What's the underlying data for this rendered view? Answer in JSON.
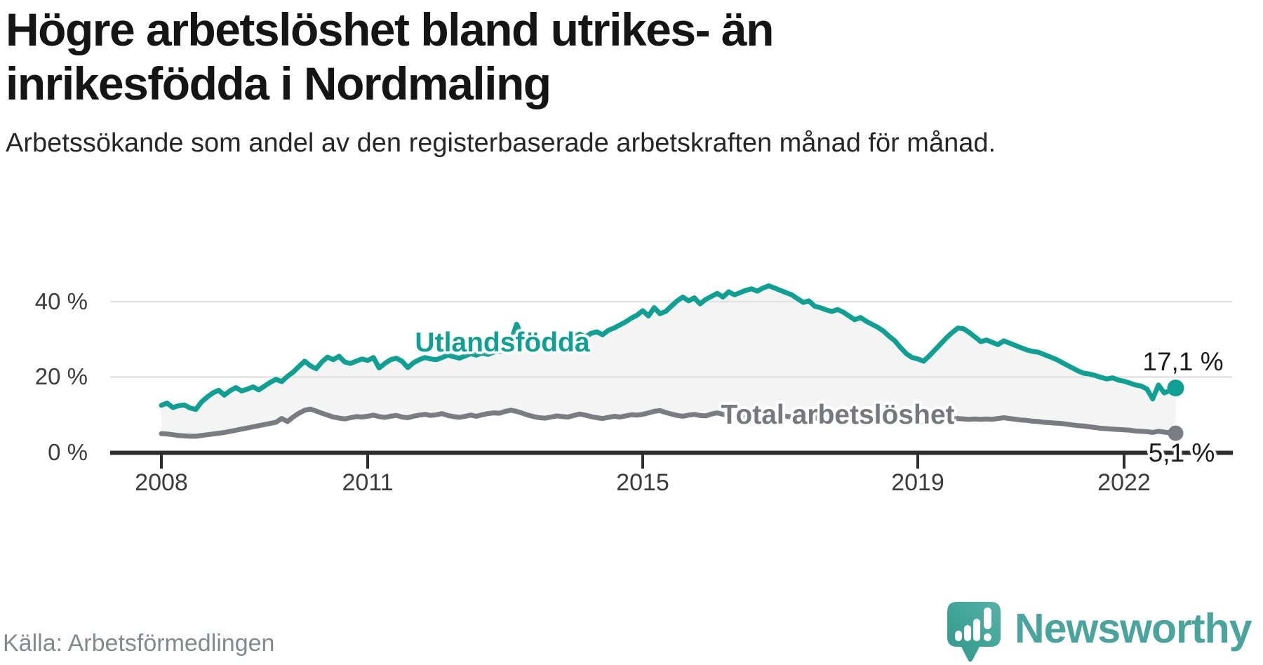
{
  "header": {
    "title": "Högre arbetslöshet bland utrikes- än inrikesfödda i Nordmaling",
    "subtitle": "Arbetssökande som andel av den registerbaserade arbetskraften månad för månad."
  },
  "chart_data": {
    "type": "line",
    "unit": "%",
    "frequency": "monthly",
    "x_start": "2008-01",
    "x_end": "2022-10",
    "x_tick_years": [
      2008,
      2011,
      2015,
      2019,
      2022
    ],
    "x_tick_labels": [
      "2008",
      "2011",
      "2015",
      "2019",
      "2022"
    ],
    "y_tick_labels": [
      "40 %",
      "20 %",
      "0 %"
    ],
    "y_tick_values": [
      40,
      20,
      0
    ],
    "grid_values": [
      20,
      40
    ],
    "ylim": [
      0,
      58
    ],
    "grid_on": true,
    "legend_position": "inline-labels",
    "fill_between": true,
    "fill_color": "#f4f4f5",
    "grid_color": "#e2e2e2",
    "axis_color": "#2d2d2d",
    "series": [
      {
        "name": "Utlandsfödda",
        "color": "#0fa093",
        "end_label": "17,1 %",
        "end_value": 17.1,
        "values": [
          12.5,
          13.1,
          11.9,
          12.4,
          12.6,
          11.8,
          11.4,
          13.4,
          14.7,
          15.8,
          16.5,
          15.2,
          16.4,
          17.2,
          16.3,
          16.8,
          17.4,
          16.6,
          17.6,
          18.6,
          19.4,
          18.8,
          20.2,
          21.3,
          22.8,
          24.2,
          23.0,
          22.2,
          24.0,
          25.3,
          24.6,
          25.5,
          24.0,
          23.6,
          24.2,
          24.8,
          24.4,
          25.2,
          22.4,
          23.6,
          24.6,
          25.0,
          24.2,
          22.5,
          23.8,
          24.6,
          25.2,
          24.8,
          24.6,
          25.2,
          25.8,
          25.4,
          25.0,
          25.6,
          26.2,
          25.8,
          26.4,
          26.0,
          26.6,
          26.8,
          27.2,
          29.5,
          34.0,
          30.5,
          28.2,
          27.6,
          28.0,
          28.6,
          29.0,
          29.4,
          29.8,
          30.2,
          30.6,
          31.4,
          30.6,
          31.6,
          32.0,
          31.2,
          32.4,
          33.0,
          33.8,
          34.6,
          35.6,
          36.4,
          37.6,
          36.2,
          38.4,
          36.8,
          37.4,
          38.8,
          40.2,
          41.2,
          40.2,
          41.0,
          39.4,
          40.6,
          41.4,
          42.2,
          41.2,
          42.6,
          41.8,
          42.4,
          43.0,
          43.4,
          42.8,
          43.6,
          44.2,
          43.6,
          43.0,
          42.4,
          41.8,
          40.8,
          39.8,
          40.2,
          38.8,
          38.4,
          37.8,
          37.4,
          37.9,
          37.2,
          36.2,
          35.2,
          35.8,
          34.8,
          34.0,
          33.2,
          32.2,
          30.8,
          29.6,
          27.8,
          26.2,
          25.2,
          24.8,
          24.2,
          25.6,
          27.2,
          28.8,
          30.4,
          31.8,
          33.0,
          32.8,
          31.8,
          30.6,
          29.4,
          29.8,
          29.2,
          28.6,
          29.6,
          29.0,
          28.4,
          27.8,
          27.2,
          26.8,
          26.6,
          26.0,
          25.4,
          24.8,
          24.0,
          23.2,
          22.4,
          21.6,
          21.0,
          20.8,
          20.4,
          19.9,
          19.5,
          19.8,
          19.2,
          18.9,
          18.4,
          17.9,
          17.6,
          16.8,
          14.2,
          17.9,
          15.8,
          16.4,
          17.1
        ]
      },
      {
        "name": "Total arbetslöshet",
        "color": "#7b7b82",
        "end_label": "5,1 %",
        "end_value": 5.1,
        "values": [
          5.0,
          4.9,
          4.7,
          4.5,
          4.4,
          4.3,
          4.3,
          4.5,
          4.7,
          4.9,
          5.1,
          5.3,
          5.6,
          5.9,
          6.2,
          6.5,
          6.8,
          7.1,
          7.4,
          7.7,
          8.0,
          9.0,
          8.2,
          9.4,
          10.4,
          11.2,
          11.5,
          11.0,
          10.4,
          9.9,
          9.4,
          9.1,
          8.9,
          9.2,
          9.5,
          9.4,
          9.6,
          9.9,
          9.5,
          9.3,
          9.6,
          9.8,
          9.4,
          9.2,
          9.6,
          9.9,
          10.1,
          9.8,
          10.0,
          10.3,
          9.8,
          9.5,
          9.3,
          9.6,
          9.9,
          9.6,
          10.0,
          10.3,
          10.5,
          10.4,
          10.9,
          11.2,
          10.9,
          10.4,
          9.9,
          9.5,
          9.2,
          9.1,
          9.4,
          9.7,
          9.5,
          9.4,
          9.8,
          10.2,
          9.9,
          9.5,
          9.2,
          9.0,
          9.3,
          9.6,
          9.4,
          9.7,
          10.0,
          9.9,
          10.1,
          10.5,
          10.9,
          11.1,
          10.6,
          10.2,
          9.8,
          9.6,
          9.9,
          10.1,
          9.8,
          9.7,
          10.2,
          10.5,
          10.1,
          9.8,
          9.6,
          9.4,
          9.7,
          10.0,
          10.1,
          9.9,
          9.7,
          9.5,
          9.8,
          9.6,
          9.4,
          9.2,
          9.0,
          8.9,
          9.1,
          9.3,
          9.1,
          8.9,
          8.8,
          8.7,
          8.8,
          8.6,
          8.5,
          8.4,
          8.3,
          8.2,
          8.4,
          8.6,
          8.4,
          8.3,
          8.2,
          8.1,
          8.3,
          8.2,
          8.4,
          8.6,
          8.7,
          8.8,
          8.9,
          9.0,
          8.9,
          8.8,
          8.9,
          8.8,
          8.9,
          8.8,
          9.0,
          9.2,
          9.0,
          8.8,
          8.6,
          8.5,
          8.3,
          8.2,
          8.0,
          7.9,
          7.8,
          7.7,
          7.5,
          7.3,
          7.1,
          7.0,
          6.8,
          6.6,
          6.4,
          6.3,
          6.2,
          6.1,
          6.0,
          5.9,
          5.7,
          5.6,
          5.5,
          5.3,
          5.6,
          5.4,
          5.2,
          5.1
        ]
      }
    ]
  },
  "footer": {
    "source": "Källa: Arbetsförmedlingen",
    "brand": "Newsworthy"
  },
  "colors": {
    "accent_teal": "#0fa093",
    "neutral_gray": "#7b7b82",
    "brand_teal": "#4aa39c",
    "background": "#ffffff"
  }
}
